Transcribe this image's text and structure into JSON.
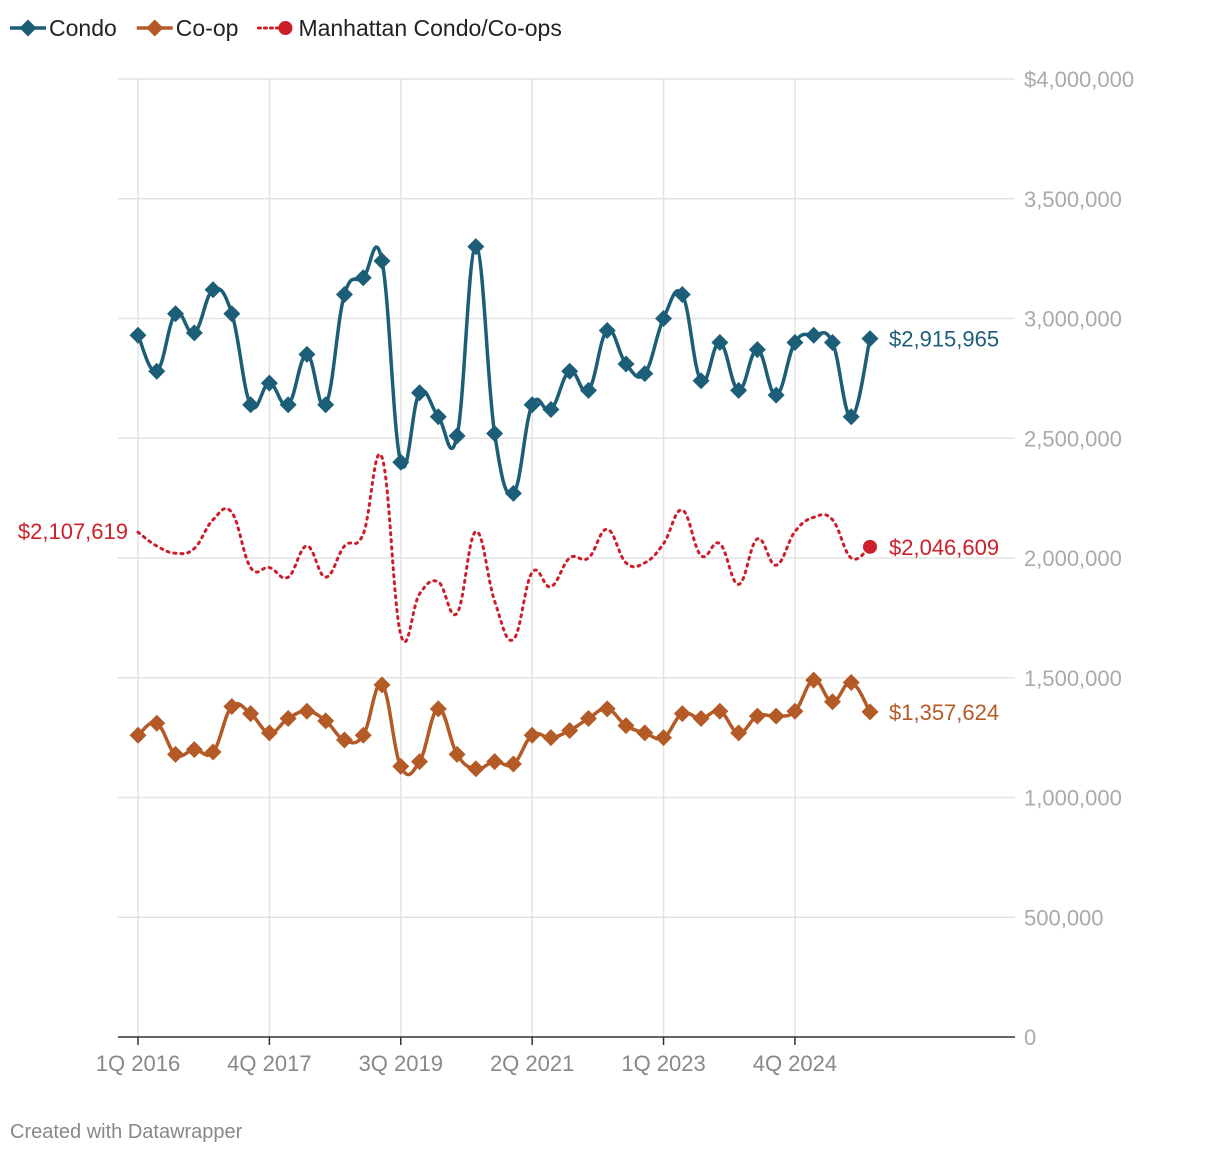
{
  "chart_data": {
    "type": "line",
    "title": "",
    "xlabel": "",
    "ylabel": "",
    "ylim": [
      0,
      4000000
    ],
    "y_ticks": [
      0,
      500000,
      1000000,
      1500000,
      2000000,
      2500000,
      3000000,
      3500000,
      4000000
    ],
    "y_tick_labels": [
      "0",
      "500,000",
      "1,000,000",
      "1,500,000",
      "2,000,000",
      "2,500,000",
      "3,000,000",
      "3,500,000",
      "$4,000,000"
    ],
    "x_ticks": [
      "1Q 2016",
      "4Q 2017",
      "3Q 2019",
      "2Q 2021",
      "1Q 2023",
      "4Q 2024"
    ],
    "x_tick_indices": [
      0,
      7,
      14,
      21,
      28,
      35
    ],
    "grid": true,
    "legend_position": "top-left",
    "categories": [
      "1Q 2016",
      "2Q 2016",
      "3Q 2016",
      "4Q 2016",
      "1Q 2017",
      "2Q 2017",
      "3Q 2017",
      "4Q 2017",
      "1Q 2018",
      "2Q 2018",
      "3Q 2018",
      "4Q 2018",
      "1Q 2019",
      "2Q 2019",
      "3Q 2019",
      "4Q 2019",
      "1Q 2020",
      "2Q 2020",
      "3Q 2020",
      "4Q 2020",
      "1Q 2021",
      "2Q 2021",
      "3Q 2021",
      "4Q 2021",
      "1Q 2022",
      "2Q 2022",
      "3Q 2022",
      "4Q 2022",
      "1Q 2023",
      "2Q 2023",
      "3Q 2023",
      "4Q 2023",
      "1Q 2024",
      "2Q 2024",
      "3Q 2024",
      "4Q 2024",
      "1Q 2025",
      "2Q 2025",
      "3Q 2025",
      "4Q 2025"
    ],
    "series": [
      {
        "name": "Condo",
        "color": "#1c5e78",
        "marker": "diamond",
        "end_label": "$2,915,965",
        "values": [
          2930000,
          2780000,
          3020000,
          2940000,
          3120000,
          3020000,
          2640000,
          2730000,
          2640000,
          2850000,
          2640000,
          3100000,
          3170000,
          3240000,
          2400000,
          2690000,
          2590000,
          2510000,
          3300000,
          2520000,
          2270000,
          2640000,
          2620000,
          2780000,
          2700000,
          2950000,
          2810000,
          2770000,
          3000000,
          3100000,
          2740000,
          2900000,
          2700000,
          2870000,
          2680000,
          2900000,
          2930000,
          2900000,
          2590000,
          2915965
        ]
      },
      {
        "name": "Co-op",
        "color": "#b35a27",
        "marker": "diamond",
        "end_label": "$1,357,624",
        "values": [
          1260000,
          1310000,
          1180000,
          1200000,
          1190000,
          1380000,
          1350000,
          1270000,
          1330000,
          1360000,
          1320000,
          1240000,
          1260000,
          1470000,
          1130000,
          1150000,
          1370000,
          1180000,
          1120000,
          1150000,
          1140000,
          1260000,
          1250000,
          1280000,
          1330000,
          1370000,
          1300000,
          1270000,
          1250000,
          1350000,
          1330000,
          1360000,
          1270000,
          1340000,
          1340000,
          1360000,
          1490000,
          1400000,
          1480000,
          1357624
        ]
      },
      {
        "name": "Manhattan Condo/Co-ops",
        "color": "#cc1f29",
        "marker": "dotted-line",
        "start_label": "$2,107,619",
        "end_label": "$2,046,609",
        "values": [
          2107619,
          2050000,
          2020000,
          2040000,
          2160000,
          2190000,
          1960000,
          1960000,
          1920000,
          2050000,
          1920000,
          2050000,
          2100000,
          2420000,
          1680000,
          1850000,
          1900000,
          1770000,
          2110000,
          1820000,
          1660000,
          1940000,
          1880000,
          2000000,
          2000000,
          2120000,
          1980000,
          1980000,
          2060000,
          2200000,
          2010000,
          2060000,
          1890000,
          2080000,
          1970000,
          2110000,
          2170000,
          2160000,
          2000000,
          2046609
        ]
      }
    ]
  },
  "footer": {
    "credit": "Created with Datawrapper"
  }
}
